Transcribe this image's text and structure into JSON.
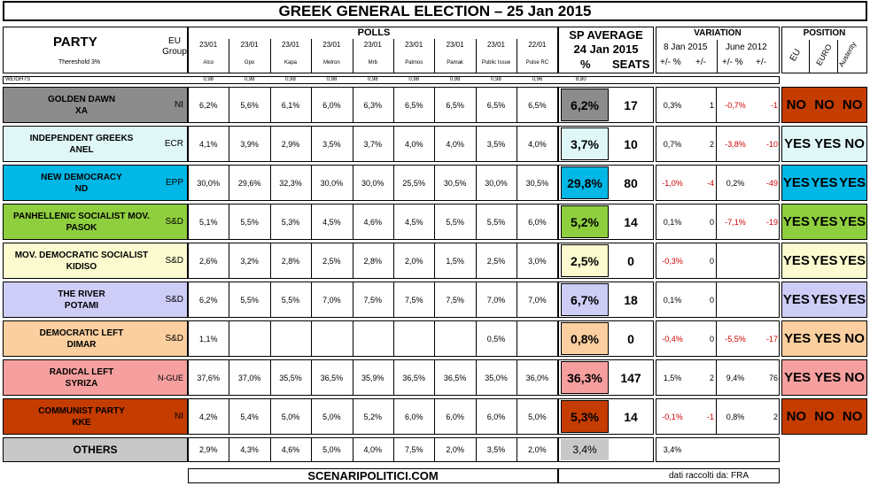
{
  "title": "GREEK GENERAL ELECTION – 25 Jan 2015",
  "header": {
    "party_label": "PARTY",
    "threshold": "Thereshold 3%",
    "eu_group": "EU Group",
    "polls_label": "POLLS",
    "weights_label": "WEIGHTS",
    "sp_average_line1": "SP AVERAGE",
    "sp_average_line2": "24 Jan 2015",
    "pct_label": "%",
    "seats_label": "SEATS",
    "variation_label": "VARIATION",
    "var1_date": "8 Jan 2015",
    "var2_date": "June 2012",
    "var_pct": "+/- %",
    "var_pm": "+/-",
    "var2_pct": "+/- %",
    "var2_pm": "+/-",
    "position_label": "POSITION",
    "pos_eu": "EU",
    "pos_euro": "EURO",
    "pos_austerity": "Austerity"
  },
  "polls": [
    {
      "date": "23/01",
      "name": "Alco",
      "weight": "0,98"
    },
    {
      "date": "23/01",
      "name": "Gpo",
      "weight": "0,98"
    },
    {
      "date": "23/01",
      "name": "Kapa",
      "weight": "0,98"
    },
    {
      "date": "23/01",
      "name": "Metron",
      "weight": "0,98"
    },
    {
      "date": "23/01",
      "name": "Mrb",
      "weight": "0,98"
    },
    {
      "date": "23/01",
      "name": "Palmos",
      "weight": "0,98"
    },
    {
      "date": "23/01",
      "name": "Pamak",
      "weight": "0,98"
    },
    {
      "date": "23/01",
      "name": "Public Issue",
      "weight": "0,98"
    },
    {
      "date": "22/01",
      "name": "Pulse RC",
      "weight": "0,96"
    }
  ],
  "sp_weight": "8,80",
  "colors": {
    "golden_dawn": "#8c8c8c",
    "anel": "#dff7f7",
    "nd": "#00b7e6",
    "pasok": "#8fcf3f",
    "kidiso": "#fbfbcf",
    "potami": "#cdcdf7",
    "dimar": "#fbcf9f",
    "syriza": "#f59f9f",
    "kke": "#c43c00",
    "others": "#c8c8c8"
  },
  "chart_data": {
    "type": "table",
    "title": "GREEK GENERAL ELECTION – 25 Jan 2015",
    "columns": [
      "Party",
      "EU Group",
      "Alco",
      "Gpo",
      "Kapa",
      "Metron",
      "Mrb",
      "Palmos",
      "Pamak",
      "Public Issue",
      "Pulse RC",
      "SP Average %",
      "Seats",
      "Var 8 Jan %",
      "Var 8 Jan seats",
      "Var June 2012 %",
      "Var June 2012 seats",
      "EU",
      "EURO",
      "Austerity"
    ],
    "rows": [
      {
        "line1": "GOLDEN DAWN",
        "line2": "XA",
        "group": "NI",
        "color": "#8c8c8c",
        "polls": [
          "6,2%",
          "5,6%",
          "6,1%",
          "6,0%",
          "6,3%",
          "6,5%",
          "6,5%",
          "6,5%",
          "6,5%"
        ],
        "avg": "6,2%",
        "seats": "17",
        "v1": "0,3%",
        "v1s": "1",
        "v2": "-0,7%",
        "v2s": "-1",
        "pos": [
          "NO",
          "NO",
          "NO"
        ],
        "pos_color": "#c43c00"
      },
      {
        "line1": "INDEPENDENT GREEKS",
        "line2": "ANEL",
        "group": "ECR",
        "color": "#dff7f7",
        "polls": [
          "4,1%",
          "3,9%",
          "2,9%",
          "3,5%",
          "3,7%",
          "4,0%",
          "4,0%",
          "3,5%",
          "4,0%"
        ],
        "avg": "3,7%",
        "seats": "10",
        "v1": "0,7%",
        "v1s": "2",
        "v2": "-3,8%",
        "v2s": "-10",
        "pos": [
          "YES",
          "YES",
          "NO"
        ],
        "pos_color": "#dff7f7"
      },
      {
        "line1": "NEW DEMOCRACY",
        "line2": "ND",
        "group": "EPP",
        "color": "#00b7e6",
        "polls": [
          "30,0%",
          "29,6%",
          "32,3%",
          "30,0%",
          "30,0%",
          "25,5%",
          "30,5%",
          "30,0%",
          "30,5%"
        ],
        "avg": "29,8%",
        "seats": "80",
        "v1": "-1,0%",
        "v1s": "-4",
        "v2": "0,2%",
        "v2s": "-49",
        "pos": [
          "YES",
          "YES",
          "YES"
        ],
        "pos_color": "#00b7e6"
      },
      {
        "line1": "PANHELLENIC SOCIALIST MOV.",
        "line2": "PASOK",
        "group": "S&D",
        "color": "#8fcf3f",
        "polls": [
          "5,1%",
          "5,5%",
          "5,3%",
          "4,5%",
          "4,6%",
          "4,5%",
          "5,5%",
          "5,5%",
          "6,0%"
        ],
        "avg": "5,2%",
        "seats": "14",
        "v1": "0,1%",
        "v1s": "0",
        "v2": "-7,1%",
        "v2s": "-19",
        "pos": [
          "YES",
          "YES",
          "YES"
        ],
        "pos_color": "#8fcf3f"
      },
      {
        "line1": "MOV. DEMOCRATIC SOCIALIST",
        "line2": "KIDISO",
        "group": "S&D",
        "color": "#fbfbcf",
        "polls": [
          "2,6%",
          "3,2%",
          "2,8%",
          "2,5%",
          "2,8%",
          "2,0%",
          "1,5%",
          "2,5%",
          "3,0%"
        ],
        "avg": "2,5%",
        "seats": "0",
        "v1": "-0,3%",
        "v1s": "0",
        "v2": "",
        "v2s": "",
        "pos": [
          "YES",
          "YES",
          "YES"
        ],
        "pos_color": "#fbfbcf"
      },
      {
        "line1": "THE RIVER",
        "line2": "POTAMI",
        "group": "S&D",
        "color": "#cdcdf7",
        "polls": [
          "6,2%",
          "5,5%",
          "5,5%",
          "7,0%",
          "7,5%",
          "7,5%",
          "7,5%",
          "7,0%",
          "7,0%"
        ],
        "avg": "6,7%",
        "seats": "18",
        "v1": "0,1%",
        "v1s": "0",
        "v2": "",
        "v2s": "",
        "pos": [
          "YES",
          "YES",
          "YES"
        ],
        "pos_color": "#cdcdf7"
      },
      {
        "line1": "DEMOCRATIC LEFT",
        "line2": "DIMAR",
        "group": "S&D",
        "color": "#fbcf9f",
        "polls": [
          "1,1%",
          "",
          "",
          "",
          "",
          "",
          "",
          "0,5%",
          ""
        ],
        "avg": "0,8%",
        "seats": "0",
        "v1": "-0,4%",
        "v1s": "0",
        "v2": "-5,5%",
        "v2s": "-17",
        "pos": [
          "YES",
          "YES",
          "NO"
        ],
        "pos_color": "#fbcf9f"
      },
      {
        "line1": "RADICAL LEFT",
        "line2": "SYRIZA",
        "group": "N-GUE",
        "color": "#f59f9f",
        "polls": [
          "37,6%",
          "37,0%",
          "35,5%",
          "36,5%",
          "35,9%",
          "36,5%",
          "36,5%",
          "35,0%",
          "36,0%"
        ],
        "avg": "36,3%",
        "seats": "147",
        "v1": "1,5%",
        "v1s": "2",
        "v2": "9,4%",
        "v2s": "76",
        "pos": [
          "YES",
          "YES",
          "NO"
        ],
        "pos_color": "#f59f9f"
      },
      {
        "line1": "COMMUNIST PARTY",
        "line2": "KKE",
        "group": "NI",
        "color": "#c43c00",
        "polls": [
          "4,2%",
          "5,4%",
          "5,0%",
          "5,0%",
          "5,2%",
          "6,0%",
          "6,0%",
          "6,0%",
          "5,0%"
        ],
        "avg": "5,3%",
        "seats": "14",
        "v1": "-0,1%",
        "v1s": "-1",
        "v2": "0,8%",
        "v2s": "2",
        "pos": [
          "NO",
          "NO",
          "NO"
        ],
        "pos_color": "#c43c00"
      }
    ],
    "others": {
      "label": "OTHERS",
      "color": "#c8c8c8",
      "polls": [
        "2,9%",
        "4,3%",
        "4,6%",
        "5,0%",
        "4,0%",
        "7,5%",
        "2,0%",
        "3,5%",
        "2,0%"
      ],
      "avg": "3,4%",
      "v1": "3,4%"
    }
  },
  "footer": {
    "site": "SCENARIPOLITICI.COM",
    "data_source": "dati raccolti da: FRA"
  }
}
